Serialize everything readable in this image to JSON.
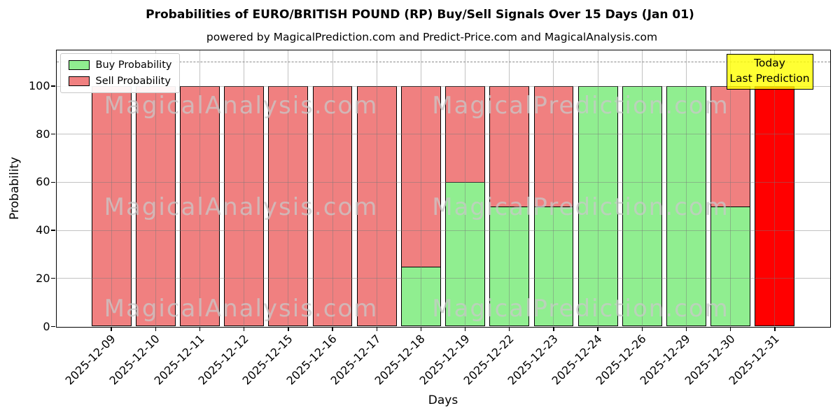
{
  "chart_data": {
    "type": "bar",
    "stacked": true,
    "title": "Probabilities of EURO/BRITISH POUND (RP) Buy/Sell Signals Over 15 Days (Jan 01)",
    "subtitle": "powered by MagicalPrediction.com and Predict-Price.com and MagicalAnalysis.com",
    "xlabel": "Days",
    "ylabel": "Probability",
    "categories": [
      "2025-12-09",
      "2025-12-10",
      "2025-12-11",
      "2025-12-12",
      "2025-12-15",
      "2025-12-16",
      "2025-12-17",
      "2025-12-18",
      "2025-12-19",
      "2025-12-22",
      "2025-12-23",
      "2025-12-24",
      "2025-12-26",
      "2025-12-29",
      "2025-12-30",
      "2025-12-31"
    ],
    "series": [
      {
        "name": "Buy Probability",
        "color": "#90ee90",
        "values": [
          0,
          0,
          0,
          0,
          0,
          0,
          0,
          25,
          60,
          50,
          50,
          100,
          100,
          100,
          50,
          0
        ]
      },
      {
        "name": "Sell Probability",
        "color": "#f08080",
        "values": [
          100,
          100,
          100,
          100,
          100,
          100,
          100,
          75,
          40,
          50,
          50,
          0,
          0,
          0,
          50,
          100
        ]
      }
    ],
    "today_sell_color": "#ff0000",
    "bar_edge_color": "#000000",
    "ylim": [
      0,
      115
    ],
    "yticks": [
      0,
      20,
      40,
      60,
      80,
      100
    ],
    "dashed_hline_y": 110,
    "grid": true,
    "legend_position": "upper left",
    "annotation": {
      "line1": "Today",
      "line2": "Last Prediction",
      "bg_color": "#ffff00"
    },
    "watermark_left": "MagicalAnalysis.com",
    "watermark_right": "MagicalPrediction.com"
  }
}
